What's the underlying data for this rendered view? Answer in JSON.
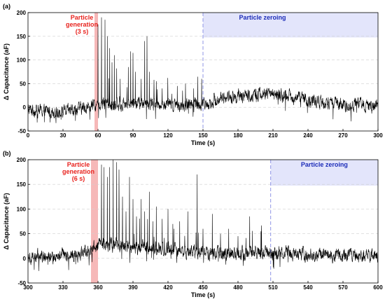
{
  "chart_data": [
    {
      "type": "line",
      "panel_label": "(a)",
      "xlabel": "Time (s)",
      "ylabel": "Δ Capacitance (aF)",
      "xlim": [
        0,
        300
      ],
      "ylim": [
        -50,
        200
      ],
      "xticks": [
        "0",
        "30",
        "60",
        "90",
        "120",
        "150",
        "180",
        "210",
        "240",
        "270",
        "300"
      ],
      "yticks": [
        "-50",
        "0",
        "50",
        "100",
        "150",
        "200"
      ],
      "grid": "horizontal dashed",
      "generation": {
        "lines": [
          "Particle",
          "generation",
          "(3 s)"
        ],
        "start": 57,
        "end": 60,
        "color": "#f4a6a6"
      },
      "zeroing": {
        "label": "Particle zeroing",
        "start": 150,
        "end": 300,
        "color": "#1c2cb8"
      },
      "baseline": [
        {
          "x": 0,
          "y": -5
        },
        {
          "x": 30,
          "y": -10
        },
        {
          "x": 50,
          "y": 0
        },
        {
          "x": 60,
          "y": 5
        },
        {
          "x": 90,
          "y": 10
        },
        {
          "x": 120,
          "y": 5
        },
        {
          "x": 150,
          "y": 5
        },
        {
          "x": 165,
          "y": 20
        },
        {
          "x": 190,
          "y": 25
        },
        {
          "x": 210,
          "y": 30
        },
        {
          "x": 240,
          "y": 15
        },
        {
          "x": 270,
          "y": 5
        },
        {
          "x": 300,
          "y": 5
        }
      ],
      "spikes": [
        {
          "x": 60,
          "y": 175
        },
        {
          "x": 63,
          "y": 190
        },
        {
          "x": 66,
          "y": 185
        },
        {
          "x": 68,
          "y": 150
        },
        {
          "x": 70,
          "y": 125
        },
        {
          "x": 72,
          "y": 95
        },
        {
          "x": 74,
          "y": 110
        },
        {
          "x": 76,
          "y": 82
        },
        {
          "x": 79,
          "y": 60
        },
        {
          "x": 86,
          "y": 85
        },
        {
          "x": 88,
          "y": 118
        },
        {
          "x": 90,
          "y": 115
        },
        {
          "x": 92,
          "y": 75
        },
        {
          "x": 97,
          "y": 60
        },
        {
          "x": 100,
          "y": 140
        },
        {
          "x": 102,
          "y": 150
        },
        {
          "x": 104,
          "y": 75
        },
        {
          "x": 110,
          "y": 55
        },
        {
          "x": 115,
          "y": 40
        },
        {
          "x": 128,
          "y": 45
        },
        {
          "x": 135,
          "y": 50
        },
        {
          "x": 142,
          "y": 40
        }
      ]
    },
    {
      "type": "line",
      "panel_label": "(b)",
      "xlabel": "Time (s)",
      "ylabel": "Δ Capacitance (aF)",
      "xlim": [
        300,
        600
      ],
      "ylim": [
        -50,
        200
      ],
      "xticks": [
        "300",
        "330",
        "360",
        "390",
        "420",
        "450",
        "480",
        "510",
        "540",
        "570",
        "600"
      ],
      "yticks": [
        "-50",
        "0",
        "50",
        "100",
        "150",
        "200"
      ],
      "grid": "horizontal dashed",
      "generation": {
        "lines": [
          "Particle",
          "generation",
          "(6 s)"
        ],
        "start": 354,
        "end": 360,
        "color": "#f4a6a6"
      },
      "zeroing": {
        "label": "Particle zeroing",
        "start": 508,
        "end": 600,
        "color": "#1c2cb8"
      },
      "baseline": [
        {
          "x": 300,
          "y": 5
        },
        {
          "x": 330,
          "y": 5
        },
        {
          "x": 350,
          "y": 10
        },
        {
          "x": 362,
          "y": 28
        },
        {
          "x": 390,
          "y": 25
        },
        {
          "x": 420,
          "y": 20
        },
        {
          "x": 450,
          "y": 10
        },
        {
          "x": 480,
          "y": 10
        },
        {
          "x": 510,
          "y": 12
        },
        {
          "x": 540,
          "y": 8
        },
        {
          "x": 570,
          "y": 5
        },
        {
          "x": 600,
          "y": 5
        }
      ],
      "spikes": [
        {
          "x": 363,
          "y": 190
        },
        {
          "x": 365,
          "y": 185
        },
        {
          "x": 368,
          "y": 165
        },
        {
          "x": 370,
          "y": 185
        },
        {
          "x": 373,
          "y": 200
        },
        {
          "x": 376,
          "y": 195
        },
        {
          "x": 378,
          "y": 180
        },
        {
          "x": 381,
          "y": 125
        },
        {
          "x": 384,
          "y": 95
        },
        {
          "x": 387,
          "y": 165
        },
        {
          "x": 390,
          "y": 120
        },
        {
          "x": 393,
          "y": 85
        },
        {
          "x": 397,
          "y": 120
        },
        {
          "x": 400,
          "y": 95
        },
        {
          "x": 404,
          "y": 135
        },
        {
          "x": 407,
          "y": 75
        },
        {
          "x": 410,
          "y": 105
        },
        {
          "x": 415,
          "y": 80
        },
        {
          "x": 420,
          "y": 100
        },
        {
          "x": 425,
          "y": 60
        },
        {
          "x": 430,
          "y": 75
        },
        {
          "x": 437,
          "y": 95
        },
        {
          "x": 445,
          "y": 170
        },
        {
          "x": 450,
          "y": 60
        },
        {
          "x": 458,
          "y": 90
        },
        {
          "x": 465,
          "y": 50
        },
        {
          "x": 472,
          "y": 60
        },
        {
          "x": 480,
          "y": 45
        },
        {
          "x": 490,
          "y": 85
        },
        {
          "x": 500,
          "y": 45
        }
      ]
    }
  ]
}
